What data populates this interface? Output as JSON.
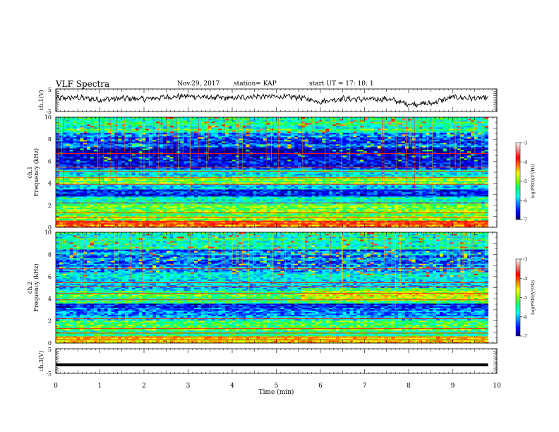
{
  "header": {
    "title": "VLF Spectra",
    "date": "Nov.29, 2017",
    "station": "station= KAP",
    "start_time": "start  UT =   17: 10: 1"
  },
  "colorbar": {
    "label": "log(PSD)(V²/Hz)",
    "ticks": [
      "-3",
      "-4",
      "-5",
      "-6",
      "-7"
    ],
    "colors": [
      "#000080",
      "#0000ff",
      "#0080ff",
      "#00ffff",
      "#00ff80",
      "#80ff00",
      "#ffff00",
      "#ff8000",
      "#ff0000",
      "#ff8080",
      "#ffffff"
    ]
  },
  "chart_data": [
    {
      "type": "line",
      "name": "ch1-waveform",
      "ylabel": "ch.1(V)",
      "ylim": [
        -5,
        5
      ],
      "yticks": [
        "5",
        "-5"
      ],
      "x_range_min": [
        0,
        10
      ],
      "description_values": {
        "x_min": [
          0,
          0.5,
          1,
          1.5,
          2,
          2.5,
          3,
          3.5,
          4,
          4.5,
          5,
          5.5,
          6,
          6.5,
          7,
          7.5,
          8,
          8.5,
          9,
          9.5,
          9.8
        ],
        "y_volts": [
          0.8,
          1.2,
          0.2,
          0.9,
          0.5,
          1.4,
          1.8,
          1.2,
          0.9,
          1.7,
          1.6,
          1.3,
          -0.6,
          0.8,
          0.3,
          0.6,
          -1.7,
          -1.4,
          1.4,
          0.8,
          1.0
        ]
      }
    },
    {
      "type": "heatmap",
      "name": "ch1-spectrogram",
      "ylabel": "ch.1",
      "ylabel2": "Frequency (kHz)",
      "ylim": [
        0,
        10
      ],
      "yticks": [
        "0",
        "2",
        "4",
        "6",
        "8",
        "10"
      ],
      "x_range_min": [
        0,
        10
      ],
      "zlim": [
        -7,
        -3
      ],
      "bands_khz": [
        {
          "from": 0.0,
          "to": 0.6,
          "level": -4.2
        },
        {
          "from": 0.6,
          "to": 2.0,
          "level": -5.0
        },
        {
          "from": 2.0,
          "to": 2.8,
          "level": -5.6
        },
        {
          "from": 2.8,
          "to": 3.4,
          "level": -6.4
        },
        {
          "from": 3.4,
          "to": 4.0,
          "level": -5.8
        },
        {
          "from": 4.0,
          "to": 4.6,
          "level": -5.1
        },
        {
          "from": 4.6,
          "to": 5.2,
          "level": -5.7
        },
        {
          "from": 5.2,
          "to": 6.0,
          "level": -6.5
        },
        {
          "from": 6.0,
          "to": 7.2,
          "level": -6.8
        },
        {
          "from": 7.2,
          "to": 8.6,
          "level": -6.3
        },
        {
          "from": 8.6,
          "to": 10.0,
          "level": -5.5
        }
      ]
    },
    {
      "type": "heatmap",
      "name": "ch2-spectrogram",
      "ylabel": "ch.2",
      "ylabel2": "Frequency (kHz)",
      "ylim": [
        0,
        10
      ],
      "yticks": [
        "0",
        "2",
        "4",
        "6",
        "8",
        "10"
      ],
      "x_range_min": [
        0,
        10
      ],
      "zlim": [
        -7,
        -3
      ],
      "bands_khz": [
        {
          "from": 0.0,
          "to": 0.6,
          "level": -4.4
        },
        {
          "from": 0.6,
          "to": 2.0,
          "level": -5.3
        },
        {
          "from": 2.0,
          "to": 3.0,
          "level": -5.9
        },
        {
          "from": 3.0,
          "to": 3.6,
          "level": -6.5
        },
        {
          "from": 3.6,
          "to": 4.8,
          "level": -5.2
        },
        {
          "from": 4.8,
          "to": 5.6,
          "level": -5.8
        },
        {
          "from": 5.6,
          "to": 6.4,
          "level": -6.0
        },
        {
          "from": 6.4,
          "to": 8.4,
          "level": -6.2
        },
        {
          "from": 8.4,
          "to": 10.0,
          "level": -5.6
        }
      ]
    },
    {
      "type": "line",
      "name": "ch3-waveform",
      "ylabel": "ch.3(V)",
      "ylim": [
        -5,
        5
      ],
      "yticks": [
        "5",
        "-5"
      ],
      "x_range_min": [
        0,
        10
      ],
      "description_values": {
        "x_min": [
          0,
          9.8
        ],
        "y_volts": [
          -1.5,
          -1.5
        ]
      }
    }
  ],
  "xaxis": {
    "label": "Time (min)",
    "ticks": [
      "0",
      "1",
      "2",
      "3",
      "4",
      "5",
      "6",
      "7",
      "8",
      "9",
      "10"
    ]
  }
}
